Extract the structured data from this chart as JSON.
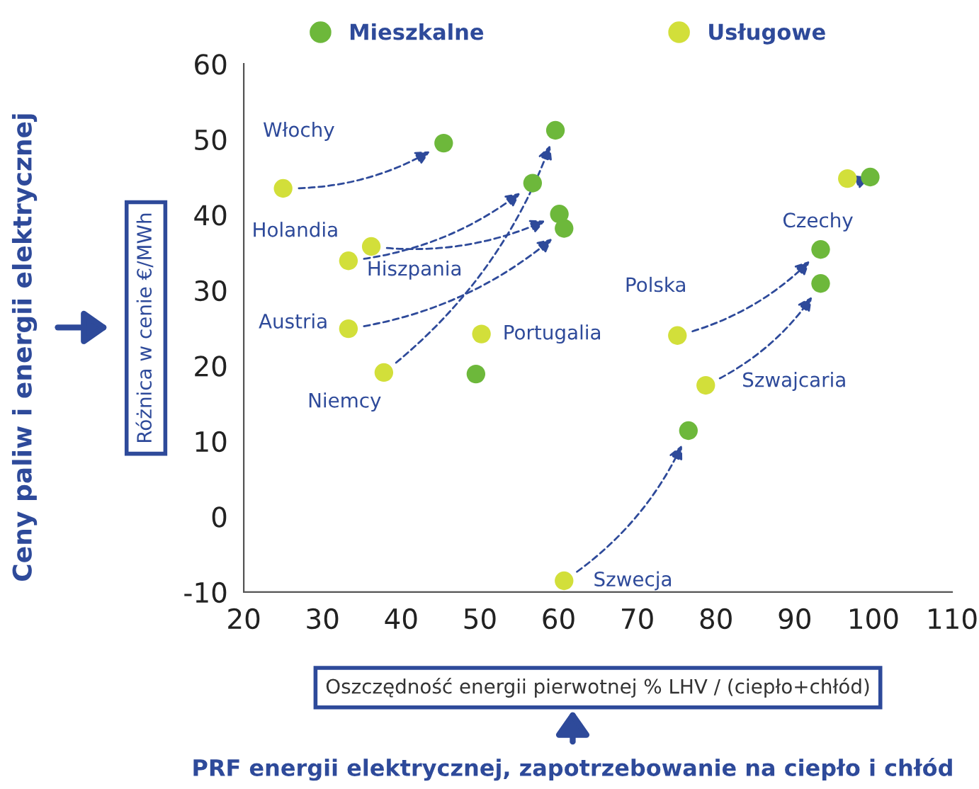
{
  "chart_data": {
    "type": "scatter",
    "xlabel": "Oszczędność energii pierwotnej % LHV / (ciepło+chłód)",
    "ylabel": "Różnica w cenie €/MWh",
    "series": [
      {
        "name": "Mieszkalne",
        "color": "#6db83b",
        "x": [
          45.4,
          56.7,
          60.1,
          60.7,
          59.6,
          49.5,
          76.5,
          93.3,
          93.3,
          99.6
        ],
        "values": [
          49.5,
          44.2,
          40.1,
          38.2,
          51.2,
          18.9,
          11.4,
          35.4,
          30.9,
          45.0
        ]
      },
      {
        "name": "Usługowe",
        "color": "#d2df3a",
        "x": [
          25.0,
          33.3,
          36.2,
          33.3,
          37.8,
          50.2,
          60.7,
          75.1,
          78.7,
          96.7
        ],
        "values": [
          43.5,
          33.9,
          35.8,
          24.9,
          19.1,
          24.2,
          -8.5,
          24.0,
          17.4,
          44.8
        ]
      }
    ],
    "xlim": [
      20,
      110
    ],
    "xticks": [
      20,
      30,
      40,
      50,
      60,
      70,
      80,
      90,
      100,
      110
    ],
    "ylim": [
      -10,
      60
    ],
    "yticks": [
      -10,
      0,
      10,
      20,
      30,
      40,
      50,
      60
    ],
    "marker": "circle",
    "legend": "top",
    "grid": false,
    "annotations": [
      {
        "text": "Włochy",
        "x": 25.0,
        "y": 43.5
      },
      {
        "text": "Holandia",
        "x": 33.3,
        "y": 33.9
      },
      {
        "text": "Hiszpania",
        "x": 36.2,
        "y": 35.8
      },
      {
        "text": "Austria",
        "x": 33.3,
        "y": 24.9
      },
      {
        "text": "Niemcy",
        "x": 37.8,
        "y": 19.1
      },
      {
        "text": "Portugalia",
        "x": 50.2,
        "y": 24.2
      },
      {
        "text": "Szwecja",
        "x": 60.7,
        "y": -8.5
      },
      {
        "text": "Polska",
        "x": 75.1,
        "y": 24.0
      },
      {
        "text": "Szwajcaria",
        "x": 78.7,
        "y": 17.4
      },
      {
        "text": "Czechy",
        "x": 96.7,
        "y": 44.8
      },
      "Ceny paliw i energii elektrycznej",
      "PRF energii elektrycznej, zapotrzebowanie na ciepło i chłód"
    ]
  }
}
